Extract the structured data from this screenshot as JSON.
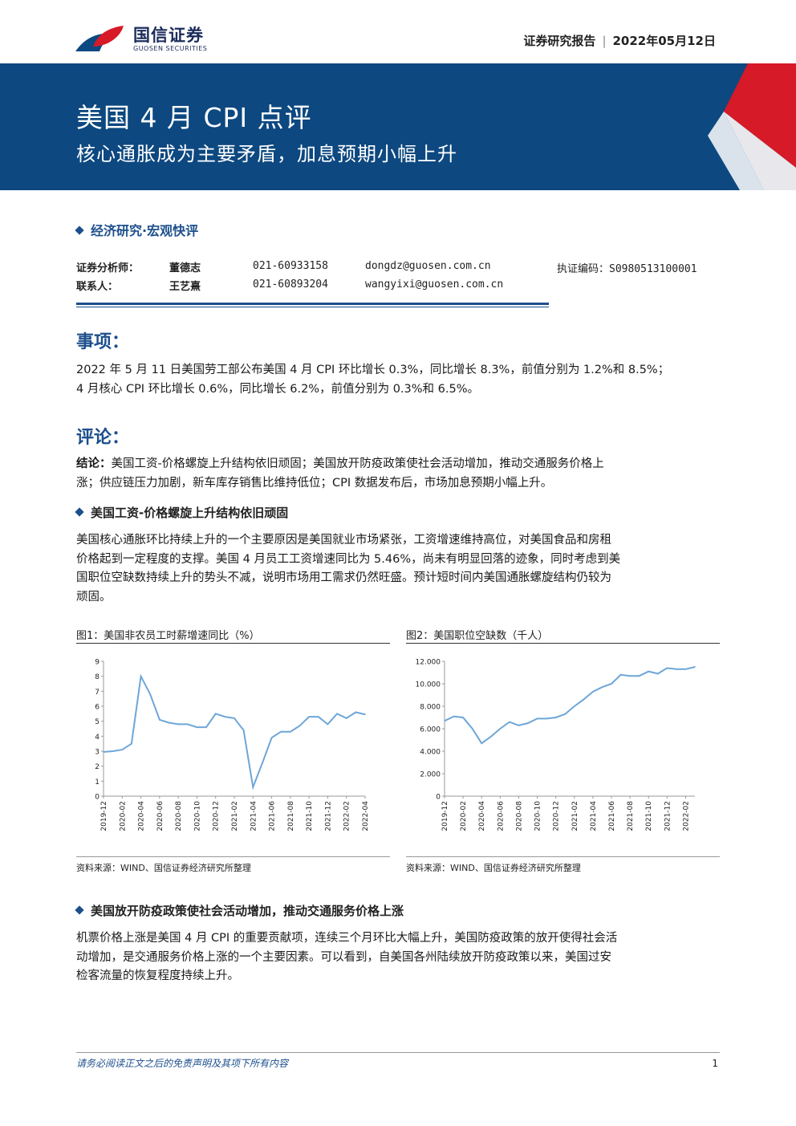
{
  "header": {
    "logo_cn": "国信证券",
    "logo_en": "GUOSEN SECURITIES",
    "report_type": "证券研究报告",
    "date": "2022年05月12日"
  },
  "banner": {
    "title": "美国 4 月 CPI 点评",
    "subtitle": "核心通胀成为主要矛盾，加息预期小幅上升"
  },
  "category": "经济研究·宏观快评",
  "analysts": [
    {
      "role": "证券分析师：",
      "name": "董德志",
      "phone": "021-60933158",
      "email": "dongdz@guosen.com.cn",
      "license": "执证编码：S0980513100001"
    },
    {
      "role": "联系人：",
      "name": "王艺熹",
      "phone": "021-60893204",
      "email": "wangyixi@guosen.com.cn",
      "license": ""
    }
  ],
  "sections": {
    "event_heading": "事项：",
    "event_line1": "2022 年 5 月 11 日美国劳工部公布美国 4 月 CPI 环比增长 0.3%，同比增长 8.3%，前值分别为 1.2%和 8.5%；",
    "event_line2": "4 月核心 CPI 环比增长 0.6%，同比增长 6.2%，前值分别为 0.3%和 6.5%。",
    "comment_heading": "评论：",
    "conclusion_label": "结论：",
    "conclusion_line1": "美国工资-价格螺旋上升结构依旧顽固；美国放开防疫政策使社会活动增加，推动交通服务价格上",
    "conclusion_line2": "涨；供应链压力加剧，新车库存销售比维持低位；CPI 数据发布后，市场加息预期小幅上升。",
    "bullet1": "美国工资-价格螺旋上升结构依旧顽固",
    "para1_line1": "美国核心通胀环比持续上升的一个主要原因是美国就业市场紧张，工资增速维持高位，对美国食品和房租",
    "para1_line2": "价格起到一定程度的支撑。美国 4 月员工工资增速同比为 5.46%，尚未有明显回落的迹象，同时考虑到美",
    "para1_line3": "国职位空缺数持续上升的势头不减，说明市场用工需求仍然旺盛。预计短时间内美国通胀螺旋结构仍较为",
    "para1_line4": "顽固。",
    "bullet2": "美国放开防疫政策使社会活动增加，推动交通服务价格上涨",
    "para2_line1": "机票价格上涨是美国 4 月 CPI 的重要贡献项，连续三个月环比大幅上升，美国防疫政策的放开使得社会活",
    "para2_line2": "动增加，是交通服务价格上涨的一个主要因素。可以看到，自美国各州陆续放开防疫政策以来，美国过安",
    "para2_line3": "检客流量的恢复程度持续上升。"
  },
  "figures": [
    {
      "caption": "图1：美国非农员工时薪增速同比（%）",
      "source": "资料来源：WIND、国信证券经济研究所整理"
    },
    {
      "caption": "图2：美国职位空缺数（千人）",
      "source": "资料来源：WIND、国信证券经济研究所整理"
    }
  ],
  "chart_data": [
    {
      "type": "line",
      "title": "图1：美国非农员工时薪增速同比（%）",
      "ylim": [
        0,
        9
      ],
      "yticks": [
        "0",
        "1",
        "2",
        "3",
        "4",
        "5",
        "6",
        "7",
        "8",
        "9"
      ],
      "xticks": [
        "2019-12",
        "2020-02",
        "2020-04",
        "2020-06",
        "2020-08",
        "2020-10",
        "2020-12",
        "2021-02",
        "2021-04",
        "2021-06",
        "2021-08",
        "2021-10",
        "2021-12",
        "2022-02",
        "2022-04"
      ],
      "x": [
        "2019-12",
        "2020-01",
        "2020-02",
        "2020-03",
        "2020-04",
        "2020-05",
        "2020-06",
        "2020-07",
        "2020-08",
        "2020-09",
        "2020-10",
        "2020-11",
        "2020-12",
        "2021-01",
        "2021-02",
        "2021-03",
        "2021-04",
        "2021-05",
        "2021-06",
        "2021-07",
        "2021-08",
        "2021-09",
        "2021-10",
        "2021-11",
        "2021-12",
        "2022-01",
        "2022-02",
        "2022-03",
        "2022-04"
      ],
      "values": [
        2.95,
        3.0,
        3.1,
        3.5,
        8.0,
        6.8,
        5.1,
        4.9,
        4.8,
        4.8,
        4.6,
        4.6,
        5.5,
        5.3,
        5.2,
        4.4,
        0.6,
        2.2,
        3.9,
        4.3,
        4.3,
        4.7,
        5.3,
        5.3,
        4.8,
        5.5,
        5.2,
        5.6,
        5.46
      ],
      "color": "#6ea6d8"
    },
    {
      "type": "line",
      "title": "图2：美国职位空缺数（千人）",
      "ylim": [
        0,
        12000
      ],
      "yticks": [
        "0",
        "2.000",
        "4.000",
        "6.000",
        "8.000",
        "10.000",
        "12.000"
      ],
      "xticks": [
        "2019-12",
        "2020-02",
        "2020-04",
        "2020-06",
        "2020-08",
        "2020-10",
        "2020-12",
        "2021-02",
        "2021-04",
        "2021-06",
        "2021-08",
        "2021-10",
        "2021-12",
        "2022-02"
      ],
      "x": [
        "2019-12",
        "2020-01",
        "2020-02",
        "2020-03",
        "2020-04",
        "2020-05",
        "2020-06",
        "2020-07",
        "2020-08",
        "2020-09",
        "2020-10",
        "2020-11",
        "2020-12",
        "2021-01",
        "2021-02",
        "2021-03",
        "2021-04",
        "2021-05",
        "2021-06",
        "2021-07",
        "2021-08",
        "2021-09",
        "2021-10",
        "2021-11",
        "2021-12",
        "2022-01",
        "2022-02",
        "2022-03"
      ],
      "values": [
        6700,
        7100,
        7000,
        6000,
        4700,
        5300,
        6000,
        6600,
        6300,
        6500,
        6900,
        6900,
        7000,
        7300,
        8000,
        8600,
        9300,
        9700,
        10000,
        10800,
        10700,
        10700,
        11100,
        10900,
        11400,
        11300,
        11300,
        11500
      ],
      "color": "#6ea6d8"
    }
  ],
  "footer": {
    "disclaimer": "请务必阅读正文之后的免责声明及其项下所有内容",
    "page": "1"
  },
  "colors": {
    "brand_blue": "#0d4880",
    "accent_red": "#d71a28",
    "heading_blue": "#1d4f8c",
    "series": "#6ea6d8"
  }
}
